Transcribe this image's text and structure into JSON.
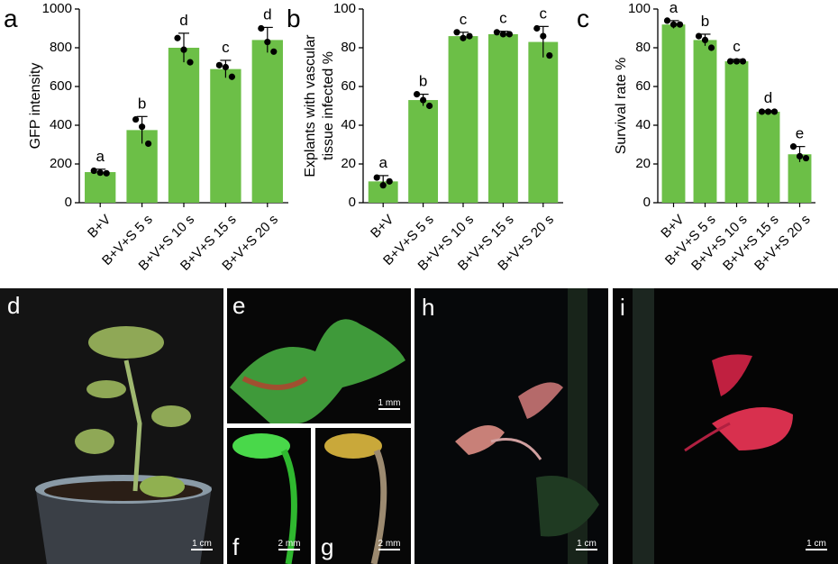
{
  "chart_data": [
    {
      "type": "bar",
      "panel": "a",
      "ylabel": [
        "GFP intensity"
      ],
      "color": "#6cbf47",
      "categories": [
        "B+V",
        "B+V+S 5 s",
        "B+V+S 10 s",
        "B+V+S 15 s",
        "B+V+S 20 s"
      ],
      "values": [
        158,
        375,
        800,
        690,
        840
      ],
      "errors": [
        15,
        70,
        75,
        45,
        65
      ],
      "points": [
        [
          165,
          155,
          152
        ],
        [
          430,
          392,
          305
        ],
        [
          850,
          790,
          725
        ],
        [
          710,
          700,
          650
        ],
        [
          900,
          830,
          780
        ]
      ],
      "letters": [
        "a",
        "b",
        "d",
        "c",
        "d"
      ],
      "ylim": [
        0,
        1000
      ],
      "yticks": [
        0,
        200,
        400,
        600,
        800,
        1000
      ]
    },
    {
      "type": "bar",
      "panel": "b",
      "ylabel": [
        "Explants with vascular",
        "tissue infected %"
      ],
      "color": "#6cbf47",
      "categories": [
        "B+V",
        "B+V+S 5 s",
        "B+V+S 10 s",
        "B+V+S 15 s",
        "B+V+S 20 s"
      ],
      "values": [
        11,
        53,
        86,
        87,
        83
      ],
      "errors": [
        3,
        3,
        2,
        1.5,
        8
      ],
      "points": [
        [
          13,
          9,
          11
        ],
        [
          56,
          53,
          50
        ],
        [
          88,
          85,
          86
        ],
        [
          88,
          87,
          87
        ],
        [
          90,
          86,
          76
        ]
      ],
      "letters": [
        "a",
        "b",
        "c",
        "c",
        "c"
      ],
      "ylim": [
        0,
        100
      ],
      "yticks": [
        0,
        20,
        40,
        60,
        80,
        100
      ]
    },
    {
      "type": "bar",
      "panel": "c",
      "ylabel": [
        "Survival rate %"
      ],
      "color": "#6cbf47",
      "categories": [
        "B+V",
        "B+V+S 5 s",
        "B+V+S 10 s",
        "B+V+S 15 s",
        "B+V+S 20 s"
      ],
      "values": [
        92,
        84,
        73,
        47,
        25
      ],
      "errors": [
        2,
        3,
        1,
        0.5,
        4
      ],
      "points": [
        [
          94,
          92,
          92
        ],
        [
          86,
          84,
          80
        ],
        [
          73,
          73,
          73
        ],
        [
          47,
          47,
          47
        ],
        [
          29,
          24,
          23
        ]
      ],
      "letters": [
        "a",
        "b",
        "c",
        "d",
        "e"
      ],
      "ylim": [
        0,
        100
      ],
      "yticks": [
        0,
        20,
        40,
        60,
        80,
        100
      ]
    }
  ],
  "photos": [
    {
      "panel": "d",
      "scale_bar": "1 cm"
    },
    {
      "panel": "e",
      "scale_bar": "1 mm"
    },
    {
      "panel": "f",
      "scale_bar": "2 mm"
    },
    {
      "panel": "g",
      "scale_bar": "2 mm"
    },
    {
      "panel": "h",
      "scale_bar": "1 cm"
    },
    {
      "panel": "i",
      "scale_bar": "1 cm"
    }
  ]
}
